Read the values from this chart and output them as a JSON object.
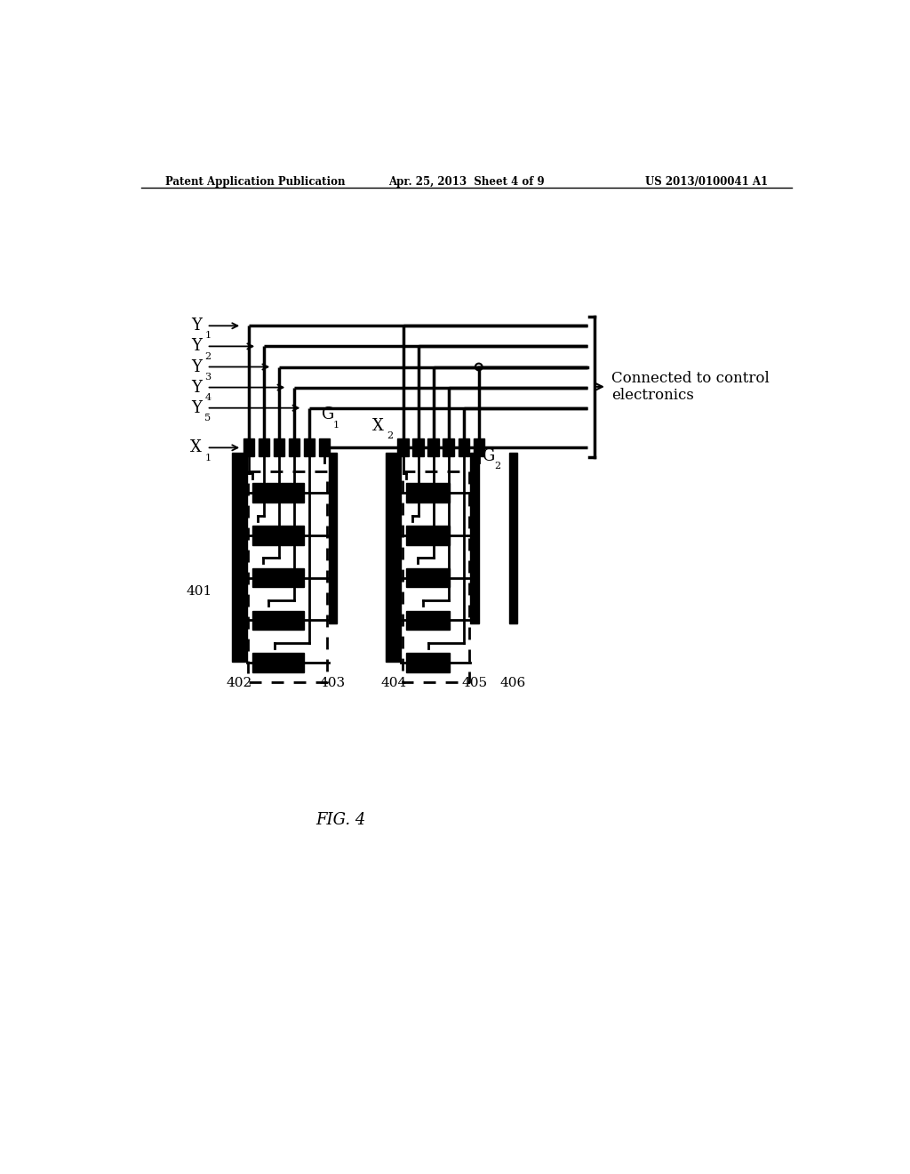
{
  "bg_color": "#ffffff",
  "header_left": "Patent Application Publication",
  "header_mid": "Apr. 25, 2013  Sheet 4 of 9",
  "header_right": "US 2013/0100041 A1",
  "footer_label": "FIG. 4",
  "connected_text": "Connected to control\nelectronics",
  "label_401": "401",
  "label_402": "402",
  "label_403": "403",
  "label_404": "404",
  "label_405": "405",
  "label_406": "406"
}
